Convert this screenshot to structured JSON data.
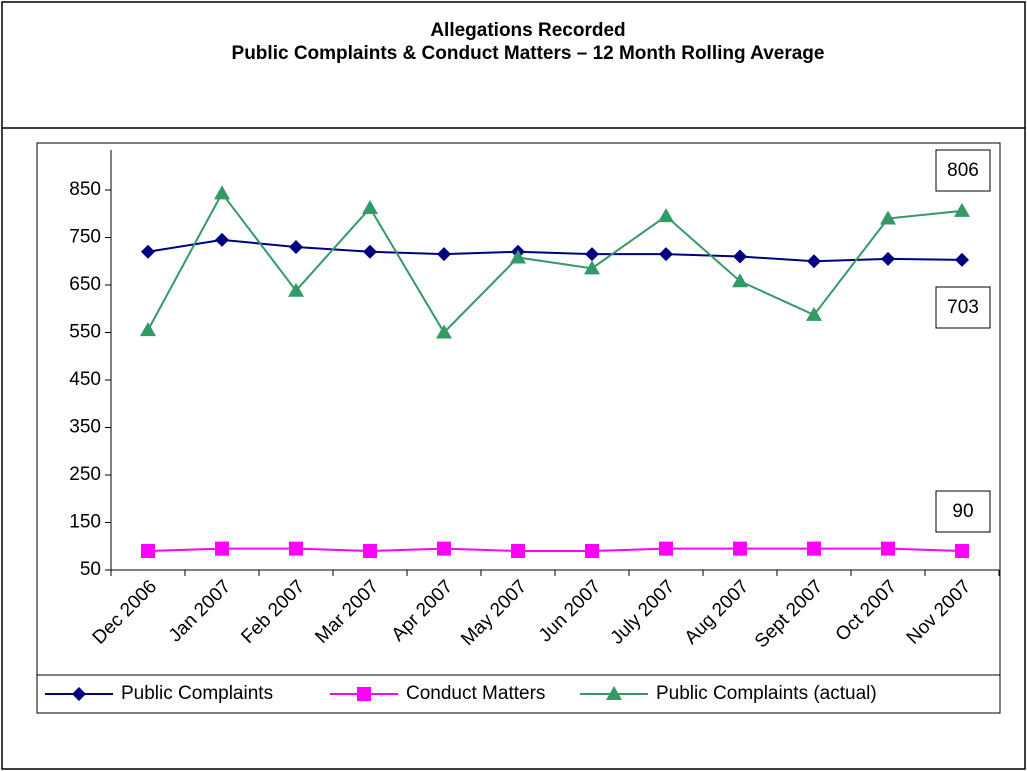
{
  "chart_data": {
    "type": "line",
    "title": "Allegations Recorded",
    "subtitle": "Public Complaints & Conduct Matters – 12 Month Rolling Average",
    "categories": [
      "Dec 2006",
      "Jan 2007",
      "Feb 2007",
      "Mar 2007",
      "Apr 2007",
      "May 2007",
      "Jun 2007",
      "July 2007",
      "Aug 2007",
      "Sept 2007",
      "Oct 2007",
      "Nov 2007"
    ],
    "series": [
      {
        "name": "Public Complaints",
        "color": "#000080",
        "marker": "diamond",
        "values": [
          720,
          745,
          730,
          720,
          715,
          720,
          715,
          715,
          710,
          700,
          705,
          703
        ]
      },
      {
        "name": "Conduct Matters",
        "color": "#ff00ff",
        "marker": "square",
        "values": [
          90,
          95,
          95,
          90,
          95,
          90,
          90,
          95,
          95,
          95,
          95,
          90
        ]
      },
      {
        "name": "Public Complaints (actual)",
        "color": "#339966",
        "marker": "triangle",
        "values": [
          555,
          843,
          638,
          812,
          550,
          708,
          685,
          795,
          658,
          587,
          790,
          806
        ]
      }
    ],
    "annotations": [
      "806",
      "703",
      "90"
    ],
    "ylim": [
      50,
      850
    ],
    "yticks": [
      50,
      150,
      250,
      350,
      450,
      550,
      650,
      750,
      850
    ],
    "legend": "bottom"
  }
}
